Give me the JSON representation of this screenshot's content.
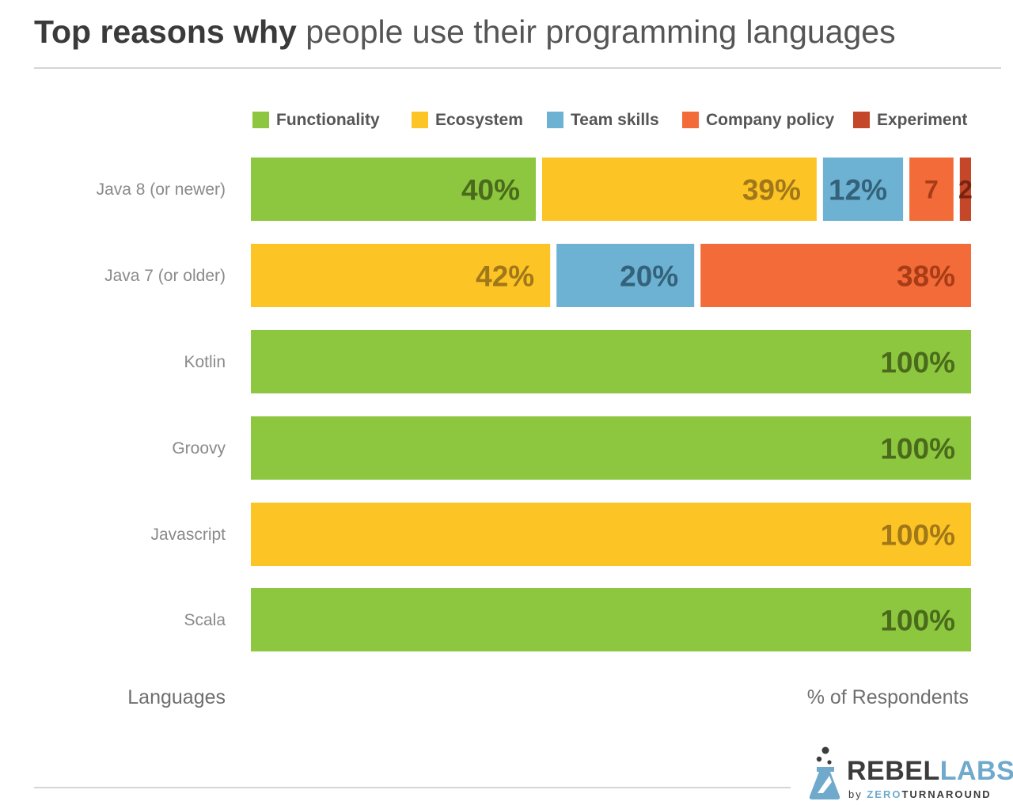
{
  "title": {
    "bold": "Top reasons why",
    "light": "people use their programming languages"
  },
  "chart_data": {
    "type": "bar",
    "orientation": "horizontal",
    "stacked": true,
    "xlim": [
      0,
      100
    ],
    "categories": [
      "Java 8 (or newer)",
      "Java 7 (or older)",
      "Kotlin",
      "Groovy",
      "Javascript",
      "Scala"
    ],
    "series": [
      {
        "name": "Functionality",
        "color": "#8dc63f",
        "label_color": "#4a6b1c",
        "values": [
          40,
          0,
          100,
          100,
          0,
          100
        ]
      },
      {
        "name": "Ecosystem",
        "color": "#fdc425",
        "label_color": "#a0781a",
        "values": [
          39,
          42,
          0,
          0,
          100,
          0
        ]
      },
      {
        "name": "Team skills",
        "color": "#6db2d2",
        "label_color": "#33627a",
        "values": [
          12,
          20,
          0,
          0,
          0,
          0
        ]
      },
      {
        "name": "Company policy",
        "color": "#f26b38",
        "label_color": "#a73c17",
        "values": [
          7,
          38,
          0,
          0,
          0,
          0
        ]
      },
      {
        "name": "Experiment",
        "color": "#c4472a",
        "label_color": "#7a2410",
        "values": [
          2,
          0,
          0,
          0,
          0,
          0
        ]
      }
    ],
    "data_labels": [
      [
        "40%",
        "39%",
        "12%",
        "7",
        "2"
      ],
      [
        "",
        "42%",
        "20%",
        "38%",
        ""
      ],
      [
        "100%",
        "",
        "",
        "",
        ""
      ],
      [
        "100%",
        "",
        "",
        "",
        ""
      ],
      [
        "",
        "100%",
        "",
        "",
        ""
      ],
      [
        "100%",
        "",
        "",
        "",
        ""
      ]
    ],
    "xlabel": "% of Respondents",
    "ylabel": "Languages",
    "legend_position": "top",
    "grid": false
  },
  "logo": {
    "word_bold": "REBEL",
    "word_accent": "LABS",
    "by": "by",
    "sub_accent": "ZERO",
    "sub_rest": "TURNAROUND",
    "mark_icon": "flask-icon"
  }
}
